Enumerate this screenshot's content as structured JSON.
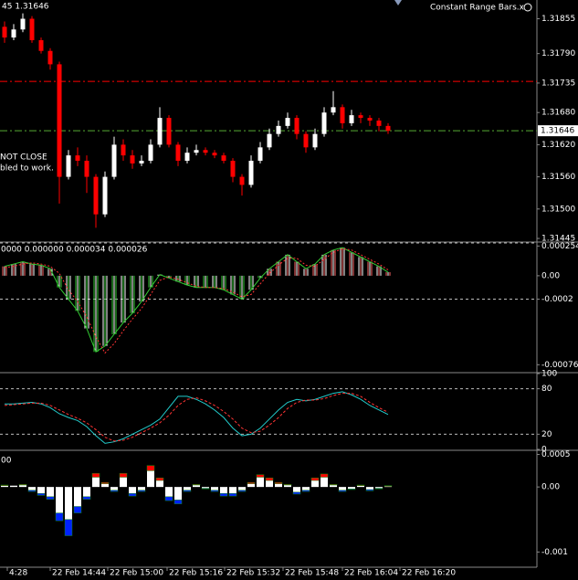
{
  "chart_data": [
    {
      "type": "candlestick",
      "title": "45 1.31646",
      "subtitle": "Constant Range Bars.x",
      "annotations": [
        "NOT CLOSE",
        "bled to work."
      ],
      "open": [
        1.3184,
        1.3182,
        1.31835,
        1.31855,
        1.31815,
        1.31795,
        1.3177,
        1.3156,
        1.316,
        1.3159,
        1.3156,
        1.3149,
        1.3156,
        1.3162,
        1.316,
        1.31585,
        1.3159,
        1.3162,
        1.3167,
        1.3162,
        1.3159,
        1.31605,
        1.3161,
        1.31605,
        1.316,
        1.3159,
        1.3156,
        1.31545,
        1.3159,
        1.31615,
        1.3164,
        1.31655,
        1.3167,
        1.3164,
        1.31615,
        1.3164,
        1.3168,
        1.3169,
        1.3166,
        1.31675,
        1.3167,
        1.31665,
        1.31655
      ],
      "high": [
        1.3185,
        1.31845,
        1.31865,
        1.3186,
        1.3182,
        1.318,
        1.31775,
        1.3161,
        1.31615,
        1.316,
        1.31565,
        1.3157,
        1.31635,
        1.3163,
        1.3161,
        1.316,
        1.3163,
        1.3169,
        1.31675,
        1.31625,
        1.31615,
        1.3162,
        1.31615,
        1.3161,
        1.31605,
        1.31595,
        1.31565,
        1.316,
        1.31625,
        1.3165,
        1.31665,
        1.3168,
        1.31675,
        1.31645,
        1.3165,
        1.3169,
        1.3172,
        1.31695,
        1.31685,
        1.3168,
        1.31675,
        1.3167,
        1.3166
      ],
      "low": [
        1.3181,
        1.31815,
        1.3183,
        1.3181,
        1.3179,
        1.3176,
        1.3151,
        1.31555,
        1.3158,
        1.3153,
        1.31465,
        1.31485,
        1.31555,
        1.3159,
        1.31575,
        1.3158,
        1.31585,
        1.31615,
        1.31615,
        1.3158,
        1.31585,
        1.316,
        1.316,
        1.31595,
        1.31585,
        1.3155,
        1.31525,
        1.3154,
        1.31585,
        1.3161,
        1.31635,
        1.3165,
        1.3163,
        1.31605,
        1.3161,
        1.31635,
        1.31675,
        1.3165,
        1.31655,
        1.3166,
        1.31655,
        1.31645,
        1.3164
      ],
      "close": [
        1.3182,
        1.31835,
        1.31855,
        1.31815,
        1.31795,
        1.3177,
        1.3156,
        1.316,
        1.3159,
        1.3156,
        1.3149,
        1.3156,
        1.3162,
        1.316,
        1.31585,
        1.3159,
        1.3162,
        1.3167,
        1.3162,
        1.3159,
        1.31605,
        1.3161,
        1.31605,
        1.316,
        1.3159,
        1.3156,
        1.31545,
        1.3159,
        1.31615,
        1.3164,
        1.31655,
        1.3167,
        1.3164,
        1.31615,
        1.3164,
        1.3168,
        1.3169,
        1.3166,
        1.31675,
        1.3167,
        1.31665,
        1.31655,
        1.31646
      ],
      "up_color": "#ffffff",
      "down_color": "#ff0000",
      "current_price": 1.31646,
      "levels": [
        {
          "value": 1.31738,
          "color": "#ff0000"
        },
        {
          "value": 1.31646,
          "color": "#55aa33"
        }
      ],
      "ylim": [
        1.3144,
        1.3189
      ],
      "yticks": [
        {
          "value": 1.31855,
          "label": "1.31855"
        },
        {
          "value": 1.3179,
          "label": "1.31790"
        },
        {
          "value": 1.31735,
          "label": "1.31735"
        },
        {
          "value": 1.3168,
          "label": "1.31680"
        },
        {
          "value": 1.3162,
          "label": "1.31620"
        },
        {
          "value": 1.3156,
          "label": "1.31560"
        },
        {
          "value": 1.315,
          "label": "1.31500"
        },
        {
          "value": 1.31445,
          "label": "1.31445"
        }
      ],
      "xlim": [
        -0.5,
        58.3
      ],
      "xticks": [
        {
          "value": 0.3,
          "label": "4:28"
        },
        {
          "value": 5,
          "label": "22 Feb 14:44"
        },
        {
          "value": 11.3,
          "label": "22 Feb 15:00"
        },
        {
          "value": 17.8,
          "label": "22 Feb 15:16"
        },
        {
          "value": 24.1,
          "label": "22 Feb 15:32"
        },
        {
          "value": 30.5,
          "label": "22 Feb 15:48"
        },
        {
          "value": 37,
          "label": "22 Feb 16:04"
        },
        {
          "value": 43.3,
          "label": "22 Feb 16:20"
        }
      ]
    },
    {
      "type": "macd",
      "title": "0000 0.000000 0.000034 0.000026",
      "values": [
        8e-05,
        0.0001,
        0.00012,
        0.0001,
        9e-05,
        6e-05,
        -0.0001,
        -0.0002,
        -0.0003,
        -0.00045,
        -0.00065,
        -0.0006,
        -0.0005,
        -0.0004,
        -0.00032,
        -0.00022,
        -0.0001,
        1e-05,
        -2e-05,
        -5e-05,
        -8e-05,
        -0.0001,
        -0.0001,
        -0.0001,
        -0.00012,
        -0.00016,
        -0.0002,
        -0.00012,
        -2e-05,
        6e-05,
        0.00012,
        0.00018,
        0.00012,
        6e-05,
        0.0001,
        0.00018,
        0.00022,
        0.00024,
        0.0002,
        0.00016,
        0.00012,
        8e-05,
        3e-05
      ],
      "signal": [
        7e-05,
        8e-05,
        0.0001,
        0.00011,
        0.0001,
        8e-05,
        2e-05,
        -0.00012,
        -0.00022,
        -0.00035,
        -0.00052,
        -0.00066,
        -0.00058,
        -0.00047,
        -0.00037,
        -0.00028,
        -0.00016,
        -4e-05,
        -1e-05,
        -3e-05,
        -6e-05,
        -9e-05,
        -0.0001,
        -0.0001,
        -0.00011,
        -0.00014,
        -0.00018,
        -0.00016,
        -7e-05,
        2e-05,
        9e-05,
        0.00015,
        0.00015,
        9e-05,
        8e-05,
        0.00014,
        0.0002,
        0.00023,
        0.00022,
        0.00018,
        0.00014,
        0.0001,
        5e-05
      ],
      "line_color": "#33cc33",
      "signal_color": "#ff3333",
      "bar_colors": [
        "#ffffff",
        "#33cc33",
        "#ff6666"
      ],
      "levels": [
        {
          "value": 0.00028,
          "color": "#bbbbbb"
        },
        {
          "value": -0.0002,
          "color": "#bbbbbb"
        }
      ],
      "ylim": [
        -0.00082,
        0.00028
      ],
      "yticks": [
        0.000254,
        {
          "value": 0,
          "label": "0.00"
        },
        -0.0002,
        -0.00076
      ]
    },
    {
      "type": "stochastic",
      "values": [
        60,
        60,
        61,
        62,
        60,
        55,
        47,
        42,
        38,
        30,
        18,
        8,
        10,
        14,
        20,
        26,
        32,
        40,
        55,
        70,
        70,
        66,
        60,
        52,
        42,
        28,
        18,
        20,
        28,
        40,
        52,
        62,
        66,
        64,
        66,
        70,
        74,
        76,
        72,
        66,
        58,
        52,
        46
      ],
      "signal": [
        58,
        59,
        60,
        61,
        61,
        58,
        52,
        46,
        41,
        35,
        26,
        16,
        11,
        12,
        16,
        22,
        28,
        35,
        45,
        58,
        66,
        68,
        64,
        58,
        50,
        40,
        28,
        22,
        24,
        32,
        42,
        54,
        62,
        65,
        65,
        67,
        71,
        74,
        74,
        70,
        62,
        55,
        49
      ],
      "line_color": "#22cccc",
      "signal_color": "#ff3333",
      "levels": [
        {
          "value": 80,
          "color": "#bbbbbb"
        },
        {
          "value": 20,
          "color": "#bbbbbb"
        }
      ],
      "ylim": [
        0,
        100
      ],
      "yticks": [
        100,
        80,
        20,
        0
      ]
    },
    {
      "type": "histogram",
      "title": "00",
      "values": [
        2e-05,
        2e-05,
        3e-05,
        -5e-05,
        -0.0001,
        -0.00015,
        -0.0004,
        -0.0005,
        -0.0003,
        -0.00015,
        0.00015,
        5e-05,
        -5e-05,
        0.00015,
        -0.0001,
        -5e-05,
        0.00025,
        0.0001,
        -0.00015,
        -0.0002,
        -5e-05,
        3e-05,
        -2e-05,
        -5e-05,
        -0.0001,
        -0.0001,
        -5e-05,
        5e-05,
        0.00015,
        0.0001,
        5e-05,
        3e-05,
        -8e-05,
        -5e-05,
        0.0001,
        0.00015,
        3e-05,
        -5e-05,
        -3e-05,
        2e-05,
        -4e-05,
        -2e-05,
        1e-05
      ],
      "tip_values": [
        1e-05,
        0,
        1e-05,
        -2e-05,
        -3e-05,
        -4e-05,
        -0.00012,
        -0.00025,
        -0.0001,
        -4e-05,
        6e-05,
        2e-05,
        -2e-05,
        6e-05,
        -4e-05,
        -2e-05,
        8e-05,
        4e-05,
        -6e-05,
        -6e-05,
        -2e-05,
        1e-05,
        -1e-05,
        -2e-05,
        -4e-05,
        -4e-05,
        -2e-05,
        2e-05,
        4e-05,
        4e-05,
        2e-05,
        1e-05,
        -3e-05,
        -2e-05,
        4e-05,
        5e-05,
        1e-05,
        -2e-05,
        -1e-05,
        1e-05,
        -2e-05,
        -1e-05,
        1e-05
      ],
      "color": "#ffffff",
      "up_tip_color": "#ff0000",
      "down_tip_color": "#0022ff",
      "edge_color": "#118811",
      "ylim": [
        -0.00122,
        0.00055
      ],
      "yticks": [
        0.0005,
        {
          "value": 0,
          "label": "0.00"
        },
        -0.001
      ]
    }
  ]
}
